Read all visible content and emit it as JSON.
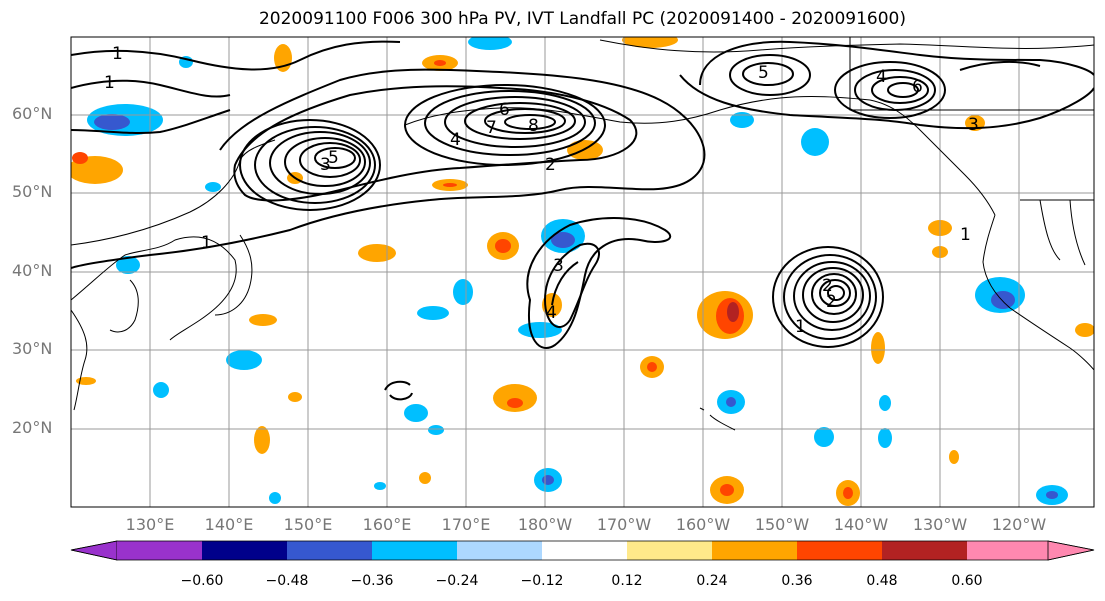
{
  "title": "2020091100 F006 300 hPa PV, IVT Landfall PC (2020091400 - 2020091600)",
  "lat_labels": [
    "60°N",
    "50°N",
    "40°N",
    "30°N",
    "20°N"
  ],
  "lon_labels": [
    "130°E",
    "140°E",
    "150°E",
    "160°E",
    "170°E",
    "180°W",
    "170°W",
    "160°W",
    "150°W",
    "140°W",
    "130°W",
    "120°W"
  ],
  "colorbar": {
    "ticks": [
      "−0.60",
      "−0.48",
      "−0.36",
      "−0.24",
      "−0.12",
      "0.12",
      "0.24",
      "0.36",
      "0.48",
      "0.60"
    ],
    "colors": [
      "#9932cc",
      "#00008b",
      "#3658cf",
      "#00bfff",
      "#add8ff",
      "#ffffff",
      "#ffe98a",
      "#ffa500",
      "#ff4500",
      "#b22222",
      "#ff88b0"
    ]
  },
  "contour_labels": [
    "1",
    "1",
    "1",
    "3",
    "5",
    "6",
    "7",
    "8",
    "4",
    "2",
    "3",
    "4",
    "6",
    "5",
    "1",
    "2",
    "3",
    "4",
    "1",
    "2",
    "3",
    "4",
    "5",
    "6",
    "7",
    "8",
    "9",
    "1",
    "2",
    "4",
    "5",
    "6",
    "7",
    "1",
    "3",
    "5"
  ]
}
